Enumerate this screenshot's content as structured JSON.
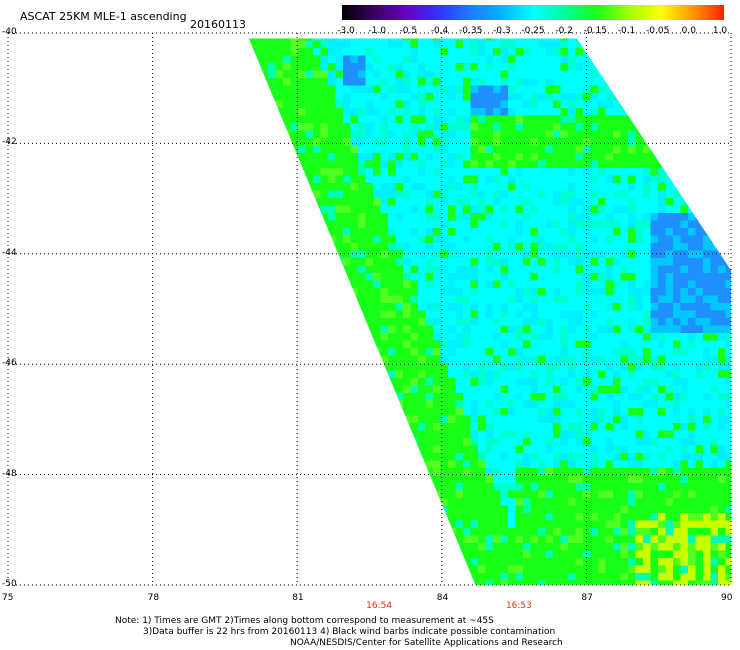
{
  "header": {
    "title": "ASCAT 25KM MLE-1 ascending",
    "date": "20160113"
  },
  "colorbar": {
    "labels": [
      "-3.0",
      "-1.0",
      "-0.5",
      "-0.4",
      "-0.35",
      "-0.3",
      "-0.25",
      "-0.2",
      "-0.15",
      "-0.1",
      "-0.05",
      "0.0",
      "1.0"
    ],
    "colors": [
      "#000000",
      "#3a0060",
      "#6a00c0",
      "#3030ff",
      "#1e78ff",
      "#00b4ff",
      "#00ffff",
      "#00ff9a",
      "#18ff18",
      "#a0ff00",
      "#ffff00",
      "#ff9a00",
      "#ff2000"
    ]
  },
  "map": {
    "lon_ticks": [
      "75",
      "78",
      "81",
      "84",
      "87",
      "90"
    ],
    "lat_ticks": [
      "-40",
      "-42",
      "-44",
      "-46",
      "-48",
      "-50"
    ],
    "swath_color_primary": "#00ffff",
    "swath_color_secondary": "#18ff18"
  },
  "times": [
    {
      "label": "16:54",
      "lon": 82.7
    },
    {
      "label": "16:53",
      "lon": 85.6
    }
  ],
  "notes": {
    "line1": "Note: 1) Times are GMT 2)Times along bottom correspond to measurement at ~45S",
    "line2": "3)Data buffer is 22 hrs from 20160113 4) Black wind barbs indicate possible contamination",
    "line3": "NOAA/NESDIS/Center for Satellite Applications and Research"
  }
}
